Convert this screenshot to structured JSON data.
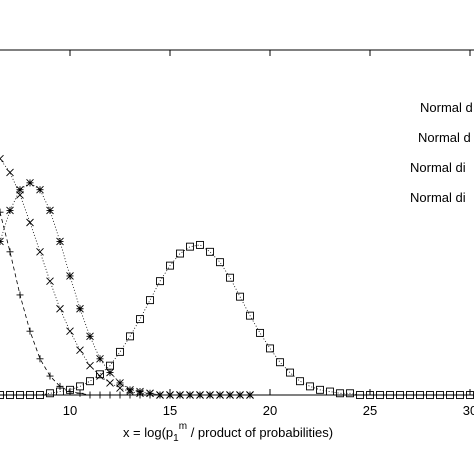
{
  "chart_data": {
    "type": "line",
    "x_label_parts": [
      "x = log(p",
      "1",
      "m",
      " / product of probabilities)"
    ],
    "x": [
      6.5,
      7,
      7.5,
      8,
      8.5,
      9,
      9.5,
      10,
      10.5,
      11,
      11.5,
      12,
      12.5,
      13,
      13.5,
      14,
      14.5,
      15,
      15.5,
      16,
      16.5,
      17,
      17.5,
      18,
      18.5,
      19,
      19.5,
      20,
      20.5,
      21,
      21.5,
      22,
      22.5,
      23,
      23.5,
      24,
      24.5,
      25,
      25.5,
      26,
      26.5,
      27,
      27.5,
      28,
      28.5,
      29,
      29.5,
      30
    ],
    "xlim": [
      6.5,
      30.2
    ],
    "xticks": [
      10,
      15,
      20,
      25,
      30
    ],
    "ylim": [
      0,
      0.2
    ],
    "series": [
      {
        "name": "Normal d",
        "color": "#000000",
        "marker": "plus",
        "dash": "dashed",
        "values": [
          0.106,
          0.083,
          0.058,
          0.037,
          0.021,
          0.011,
          0.005,
          0.002,
          0.001,
          0,
          0,
          0,
          0,
          0,
          0,
          0,
          0,
          0,
          0,
          0,
          0,
          0,
          null,
          null,
          null,
          null,
          null,
          null,
          null,
          null,
          null,
          null,
          null,
          null,
          null,
          null,
          null,
          null,
          null,
          null,
          null,
          null,
          null,
          null,
          null,
          null,
          null,
          null
        ]
      },
      {
        "name": "Normal d",
        "color": "#000000",
        "marker": "cross",
        "dash": "dotted",
        "values": [
          0.137,
          0.129,
          0.116,
          0.1,
          0.083,
          0.066,
          0.05,
          0.037,
          0.026,
          0.017,
          0.011,
          0.007,
          0.004,
          0.002,
          0.001,
          0.001,
          0,
          0,
          0,
          0,
          0,
          0,
          0,
          0,
          0,
          0,
          null,
          null,
          null,
          null,
          null,
          null,
          null,
          null,
          null,
          null,
          null,
          null,
          null,
          null,
          null,
          null,
          null,
          null,
          null,
          null,
          null,
          null
        ]
      },
      {
        "name": "Normal di",
        "color": "#000000",
        "marker": "star",
        "dash": "dotted",
        "values": [
          0.089,
          0.107,
          0.119,
          0.123,
          0.119,
          0.107,
          0.089,
          0.069,
          0.05,
          0.034,
          0.021,
          0.013,
          0.007,
          0.003,
          0.002,
          0.001,
          0,
          0,
          0,
          0,
          0,
          0,
          0,
          0,
          0,
          0,
          null,
          null,
          null,
          null,
          null,
          null,
          null,
          null,
          null,
          null,
          null,
          null,
          null,
          null,
          null,
          null,
          null,
          null,
          null,
          null,
          null,
          null
        ]
      },
      {
        "name": "Normal di",
        "color": "#000000",
        "marker": "square",
        "dash": "dotted",
        "values": [
          0,
          0,
          0,
          0,
          0,
          0.001,
          0.002,
          0.003,
          0.005,
          0.008,
          0.012,
          0.017,
          0.025,
          0.034,
          0.044,
          0.055,
          0.066,
          0.075,
          0.082,
          0.086,
          0.087,
          0.083,
          0.077,
          0.068,
          0.057,
          0.046,
          0.036,
          0.027,
          0.019,
          0.013,
          0.008,
          0.005,
          0.003,
          0.002,
          0.001,
          0.001,
          0,
          0,
          0,
          0,
          0,
          0,
          0,
          0,
          0,
          0,
          0,
          0
        ]
      }
    ]
  }
}
